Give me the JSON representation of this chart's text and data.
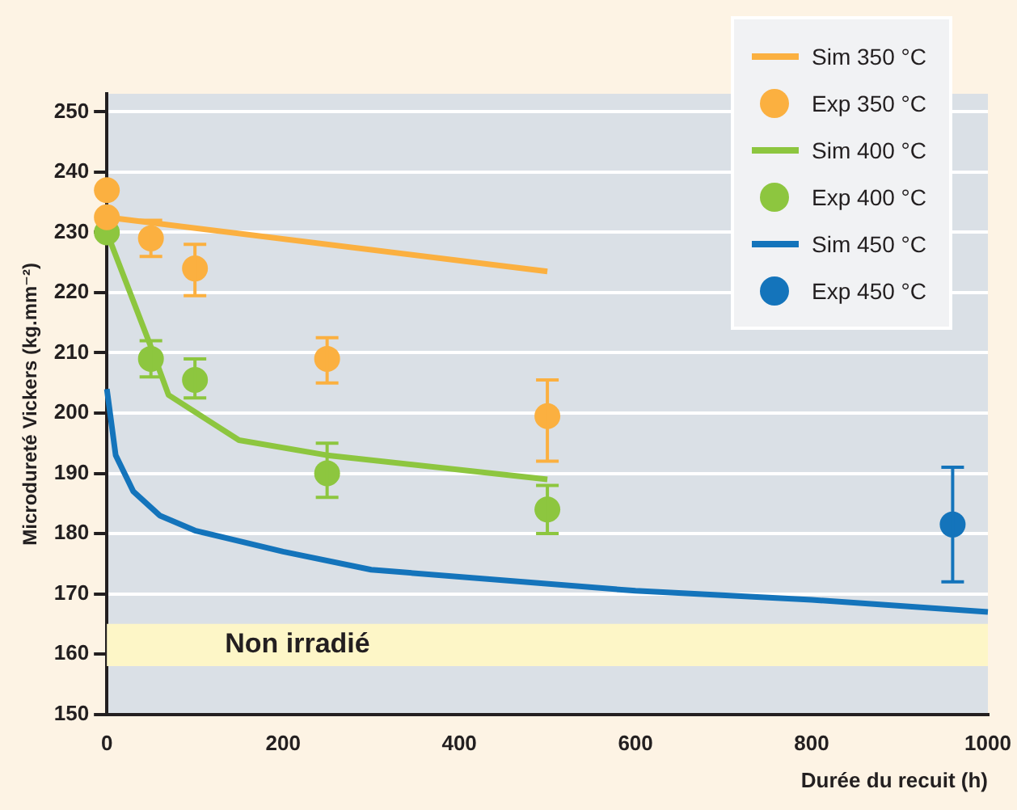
{
  "chart_data": {
    "type": "line",
    "xlabel": "Durée du recuit (h)",
    "ylabel": "Microdureté Vickers (kg.mm⁻²)",
    "xlim": [
      0,
      1000
    ],
    "xticks": [
      0,
      200,
      400,
      600,
      800,
      1000
    ],
    "ylim": [
      150,
      253
    ],
    "yticks": [
      150,
      160,
      170,
      180,
      190,
      200,
      210,
      220,
      230,
      240,
      250
    ],
    "grid": "y",
    "legend": "top right",
    "bands": [
      {
        "axis": "y",
        "from": 158,
        "to": 165,
        "label": "Non irradié",
        "color": "#fdf6c7"
      }
    ],
    "series": [
      {
        "name": "Sim 350 °C",
        "type": "line",
        "marker": "none",
        "color": "#fbb040",
        "x": [
          0,
          500
        ],
        "values": [
          232.5,
          223.5
        ]
      },
      {
        "name": "Exp 350 °C",
        "type": "scatter",
        "marker": "circle",
        "color": "#fbb040",
        "x": [
          0,
          0,
          50,
          100,
          250,
          500
        ],
        "values": [
          237,
          232.5,
          229,
          224,
          209,
          199.5
        ],
        "errors": [
          null,
          null,
          [
            226,
            232
          ],
          [
            219.5,
            228
          ],
          [
            205,
            212.5
          ],
          [
            192,
            205.5
          ]
        ]
      },
      {
        "name": "Sim 400 °C",
        "type": "line",
        "marker": "none",
        "color": "#8dc63f",
        "x": [
          0,
          50,
          70,
          150,
          250,
          500
        ],
        "values": [
          230,
          211,
          203,
          195.5,
          193,
          189
        ]
      },
      {
        "name": "Exp 400 °C",
        "type": "scatter",
        "marker": "circle",
        "color": "#8dc63f",
        "x": [
          0,
          50,
          100,
          250,
          500
        ],
        "values": [
          230,
          209,
          205.5,
          190,
          184
        ],
        "errors": [
          null,
          [
            206,
            212
          ],
          [
            202.5,
            209
          ],
          [
            186,
            195
          ],
          [
            180,
            188
          ]
        ]
      },
      {
        "name": "Sim 450 °C",
        "type": "line",
        "marker": "none",
        "color": "#1474bb",
        "x": [
          0,
          10,
          30,
          60,
          100,
          200,
          300,
          600,
          800,
          1000
        ],
        "values": [
          204,
          193,
          187,
          183,
          180.5,
          177,
          174,
          170.5,
          169,
          167
        ]
      },
      {
        "name": "Exp 450 °C",
        "type": "scatter",
        "marker": "circle",
        "color": "#1474bb",
        "x": [
          960
        ],
        "values": [
          181.5
        ],
        "errors": [
          [
            172,
            191
          ]
        ]
      }
    ]
  }
}
